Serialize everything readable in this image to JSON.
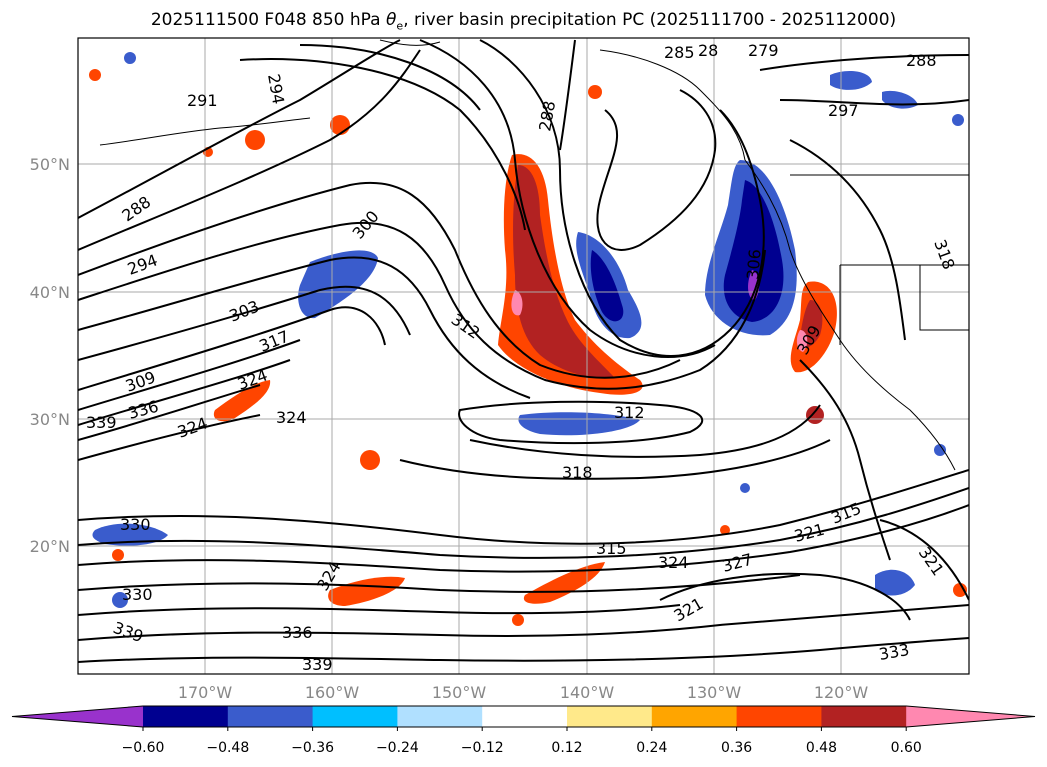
{
  "title_main": "2025111500 F048 850 hPa ",
  "title_theta": "θ",
  "title_sub": "e",
  "title_rest": ", river basin precipitation PC (2025111700 - 2025112000)",
  "lat_labels": [
    "50°N",
    "40°N",
    "30°N",
    "20°N"
  ],
  "lon_labels": [
    "170°W",
    "160°W",
    "150°W",
    "140°W",
    "130°W",
    "120°W"
  ],
  "contour_labels": [
    "294",
    "291",
    "288",
    "294",
    "300",
    "303",
    "317",
    "312",
    "309",
    "336",
    "324",
    "339",
    "324",
    "324",
    "330",
    "324",
    "339",
    "336",
    "339",
    "312",
    "318",
    "315",
    "324",
    "327",
    "321",
    "330",
    "315",
    "321",
    "321",
    "333",
    "288",
    "285",
    "28",
    "279",
    "288",
    "297",
    "306",
    "309",
    "318"
  ],
  "colorbar": {
    "colors": [
      "#9932cc",
      "#000090",
      "#3a5ccc",
      "#00bfff",
      "#b0e0ff",
      "#ffffff",
      "#ffe98a",
      "#ffa500",
      "#ff4500",
      "#b22222",
      "#ff88b0"
    ],
    "tick_labels": [
      "−0.60",
      "−0.48",
      "−0.36",
      "−0.24",
      "−0.12",
      "0.12",
      "0.24",
      "0.36",
      "0.48",
      "0.60"
    ]
  }
}
